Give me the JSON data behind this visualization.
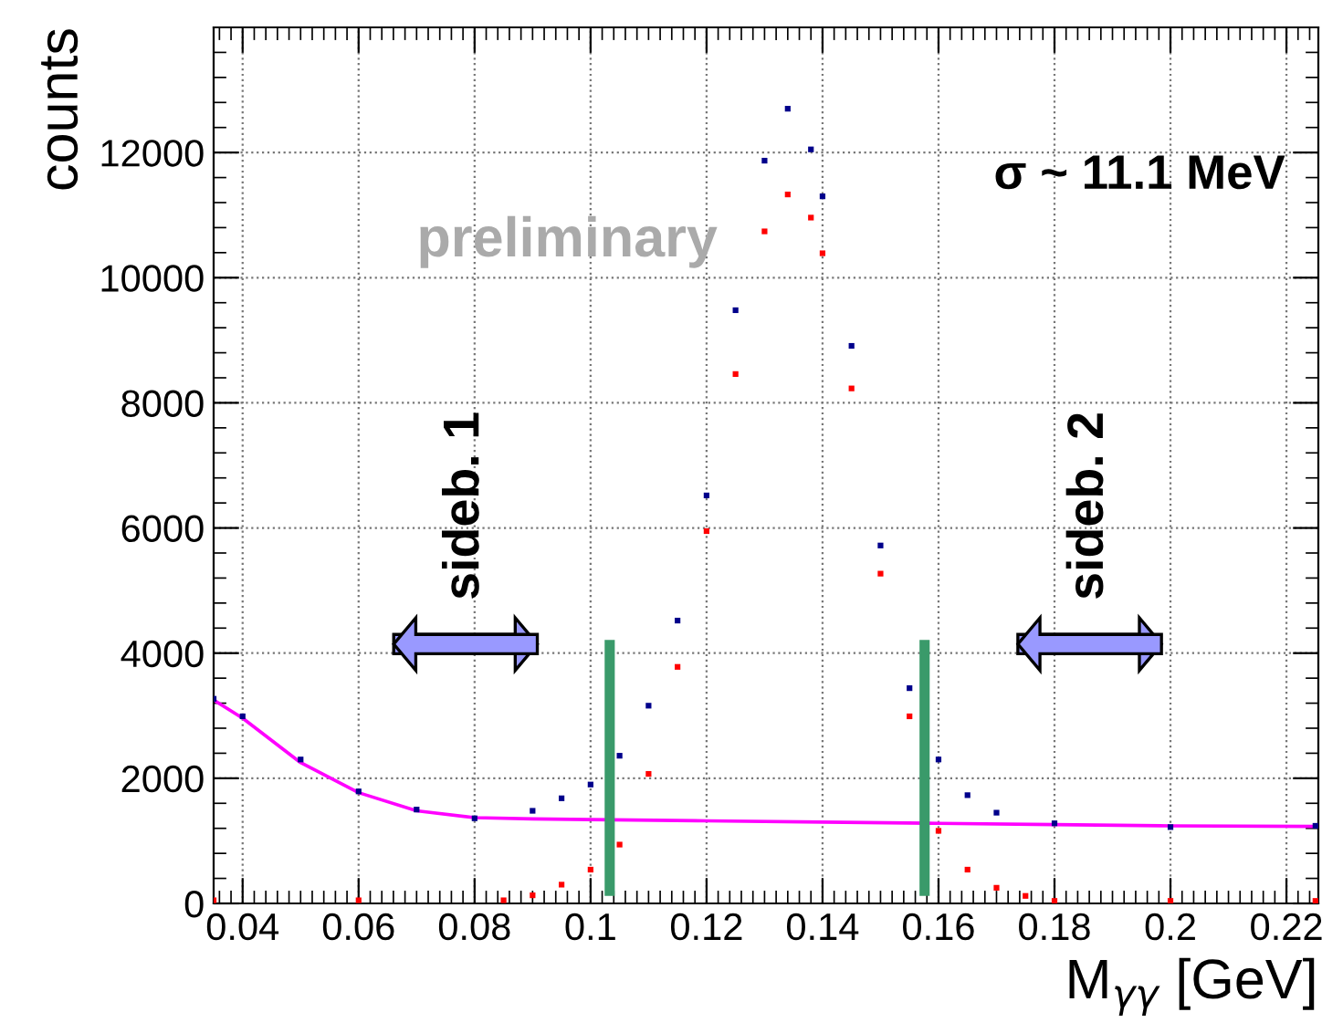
{
  "chart_data": {
    "type": "scatter",
    "xlabel": "M$_{γγ}$ [GeV]",
    "ylabel": "counts",
    "xlim": [
      0.035,
      0.2255
    ],
    "ylim": [
      0,
      14000
    ],
    "xticks": [
      0.04,
      0.06,
      0.08,
      0.1,
      0.12,
      0.14,
      0.16,
      0.18,
      0.2,
      0.22
    ],
    "yticks": [
      0,
      2000,
      4000,
      6000,
      8000,
      10000,
      12000
    ],
    "grid": true,
    "series": [
      {
        "marker": "square",
        "color": "#00008b",
        "x": [
          0.035,
          0.04,
          0.05,
          0.06,
          0.07,
          0.08,
          0.09,
          0.095,
          0.1,
          0.105,
          0.11,
          0.115,
          0.12,
          0.125,
          0.13,
          0.134,
          0.138,
          0.14,
          0.145,
          0.15,
          0.155,
          0.16,
          0.165,
          0.17,
          0.18,
          0.2,
          0.225
        ],
        "values": [
          3270,
          2990,
          2300,
          1790,
          1500,
          1360,
          1480,
          1680,
          1900,
          2360,
          3160,
          4520,
          6520,
          9480,
          11870,
          12700,
          12050,
          11300,
          8910,
          5720,
          3440,
          2300,
          1730,
          1450,
          1280,
          1220,
          1240
        ]
      },
      {
        "marker": "square",
        "color": "#ff0000",
        "x": [
          0.035,
          0.06,
          0.085,
          0.09,
          0.095,
          0.1,
          0.105,
          0.11,
          0.115,
          0.12,
          0.125,
          0.13,
          0.134,
          0.138,
          0.14,
          0.145,
          0.15,
          0.155,
          0.16,
          0.165,
          0.17,
          0.175,
          0.18,
          0.2,
          0.225
        ],
        "values": [
          50,
          50,
          50,
          130,
          300,
          540,
          940,
          2070,
          3780,
          5950,
          8460,
          10740,
          11330,
          10960,
          10390,
          8230,
          5270,
          2990,
          1160,
          540,
          250,
          120,
          40,
          40,
          40
        ]
      },
      {
        "type": "line",
        "color": "#ff00ff",
        "line_style": "solid",
        "x": [
          0.035,
          0.04,
          0.05,
          0.06,
          0.07,
          0.08,
          0.09,
          0.1,
          0.12,
          0.14,
          0.16,
          0.18,
          0.2,
          0.225
        ],
        "values": [
          3250,
          2960,
          2250,
          1770,
          1480,
          1370,
          1350,
          1340,
          1320,
          1300,
          1280,
          1260,
          1240,
          1230
        ]
      },
      {
        "type": "line",
        "color": "#3a9a6a",
        "line_style": "solid",
        "x": [
          0.1033,
          0.1033
        ],
        "values": [
          200,
          4130
        ]
      },
      {
        "type": "line",
        "color": "#3a9a6a",
        "line_style": "solid",
        "x": [
          0.1576,
          0.1576
        ],
        "values": [
          200,
          4130
        ]
      }
    ],
    "annotations": [
      "sideb. 1",
      "sideb. 2",
      "σ ~ 11.1 MeV",
      "preliminary"
    ]
  }
}
